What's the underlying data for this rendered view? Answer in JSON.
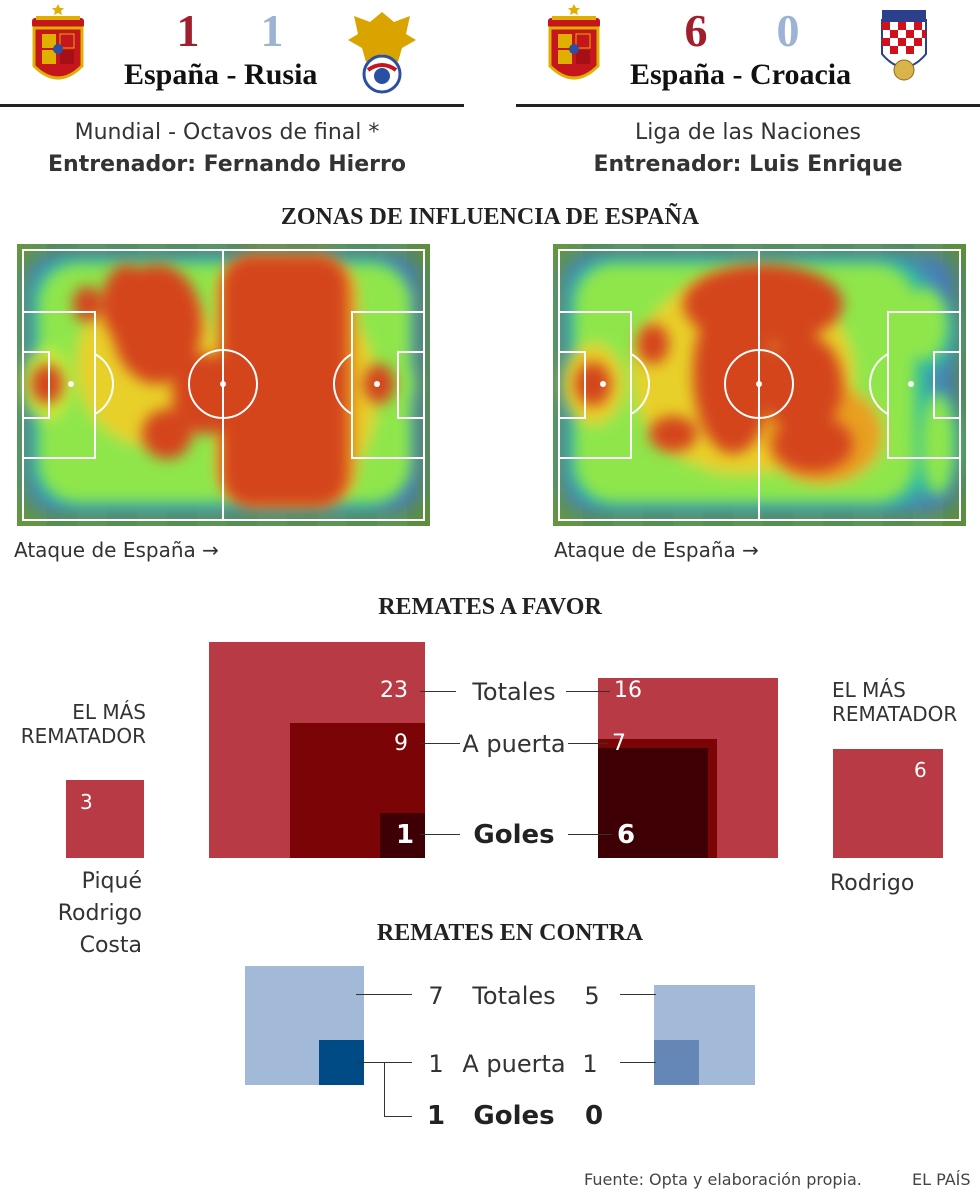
{
  "colors": {
    "home_red": "#a11f2c",
    "light_blue": "#9db3d3",
    "total_red": "#b83a44",
    "apuerta_red": "#7b0407",
    "goles_red": "#3e0004",
    "contra_light": "#a2b9d8",
    "contra_mid": "#6587b7",
    "contra_dark": "#004a85"
  },
  "match1": {
    "home_crest": "spain-crest-icon",
    "away_crest": "russia-crest-icon",
    "home_score": "1",
    "away_score": "1",
    "title": "España - Rusia",
    "competition": "Mundial - Octavos de final *",
    "coach": "Entrenador: Fernando Hierro"
  },
  "match2": {
    "home_crest": "spain-crest-icon",
    "away_crest": "croatia-crest-icon",
    "home_score": "6",
    "away_score": "0",
    "title": "España - Croacia",
    "competition": "Liga de las Naciones",
    "coach": "Entrenador: Luis Enrique"
  },
  "heatmap": {
    "title": "ZONAS DE INFLUENCIA DE ESPAÑA",
    "caption_left": "Ataque de España →",
    "caption_right": "Ataque de España →"
  },
  "chart_data": [
    {
      "type": "area",
      "title": "REMATES A FAVOR",
      "categories": [
        "Totales",
        "A puerta",
        "Goles"
      ],
      "series": [
        {
          "name": "España - Rusia",
          "values": [
            23,
            9,
            1
          ]
        },
        {
          "name": "España - Croacia",
          "values": [
            16,
            7,
            6
          ]
        }
      ]
    },
    {
      "type": "area",
      "title": "REMATES EN CONTRA",
      "categories": [
        "Totales",
        "A puerta",
        "Goles"
      ],
      "series": [
        {
          "name": "España - Rusia",
          "values": [
            7,
            1,
            1
          ]
        },
        {
          "name": "España - Croacia",
          "values": [
            5,
            1,
            0
          ]
        }
      ]
    }
  ],
  "favor": {
    "left_totales": "23",
    "left_apuerta": "9",
    "left_goles": "1",
    "right_totales": "16",
    "right_apuerta": "7",
    "right_goles": "6",
    "label_totales": "Totales",
    "label_apuerta": "A puerta",
    "label_goles": "Goles"
  },
  "contra": {
    "left_totales": "7",
    "left_apuerta": "1",
    "left_goles": "1",
    "right_totales": "5",
    "right_apuerta": "1",
    "right_goles": "0",
    "label_totales": "Totales",
    "label_apuerta": "A puerta",
    "label_goles": "Goles"
  },
  "top_shooter_left": {
    "title_line1": "EL MÁS",
    "title_line2": "REMATADOR",
    "value": "3",
    "names": [
      "Piqué",
      "Rodrigo",
      "Costa"
    ]
  },
  "top_shooter_right": {
    "title_line1": "EL MÁS",
    "title_line2": "REMATADOR",
    "value": "6",
    "names": [
      "Rodrigo"
    ]
  },
  "footer": {
    "source": "Fuente: Opta y elaboración propia.",
    "brand": "EL PAÍS"
  }
}
